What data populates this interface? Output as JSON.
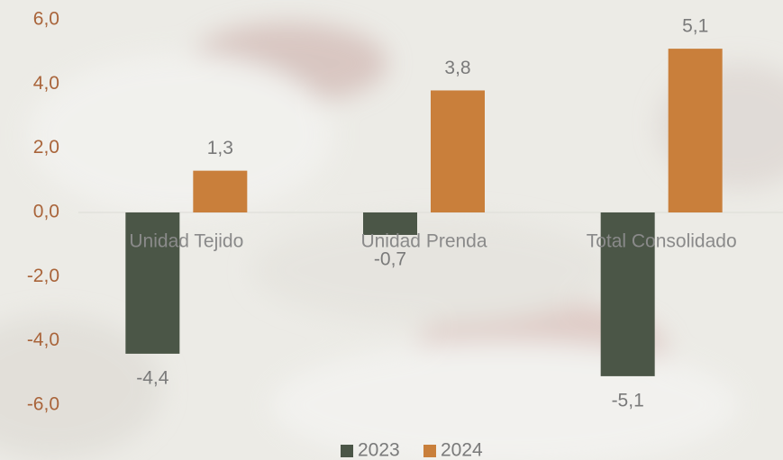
{
  "chart_data": {
    "type": "bar",
    "categories": [
      "Unidad Tejido",
      "Unidad Prenda",
      "Total Consolidado"
    ],
    "series": [
      {
        "name": "2023",
        "color": "#4b5647",
        "values": [
          -4.4,
          -0.7,
          -5.1
        ],
        "value_labels": [
          "-4,4",
          "-0,7",
          "-5,1"
        ]
      },
      {
        "name": "2024",
        "color": "#c97f3b",
        "values": [
          1.3,
          3.8,
          5.1
        ],
        "value_labels": [
          "1,3",
          "3,8",
          "5,1"
        ]
      }
    ],
    "ylim": [
      -6,
      6
    ],
    "yticks": [
      {
        "value": -6,
        "label": "-6,0"
      },
      {
        "value": -4,
        "label": "-4,0"
      },
      {
        "value": -2,
        "label": "-2,0"
      },
      {
        "value": 0,
        "label": "0,0"
      },
      {
        "value": 2,
        "label": "2,0"
      },
      {
        "value": 4,
        "label": "4,0"
      },
      {
        "value": 6,
        "label": "6,0"
      }
    ],
    "legend": "bottom"
  }
}
